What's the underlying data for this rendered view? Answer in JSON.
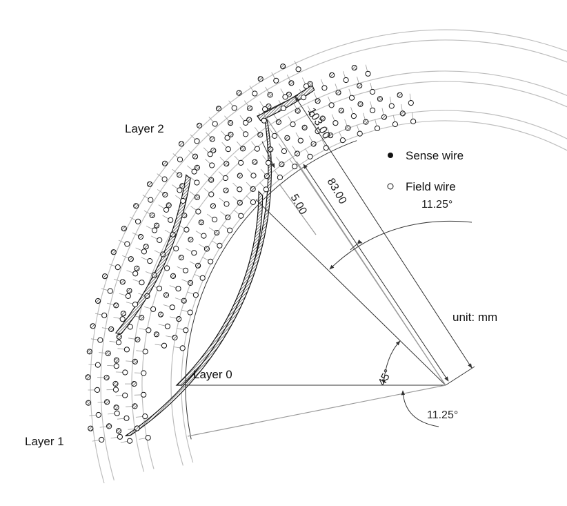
{
  "labels": {
    "layer0": "Layer 0",
    "layer1": "Layer 1",
    "layer2": "Layer 2",
    "unit": "unit: mm"
  },
  "legend": {
    "sense": "Sense wire",
    "field": "Field wire"
  },
  "dimensions": {
    "d103": "103.00",
    "d83": "83.00",
    "d5": "5.00",
    "angle45": "45°",
    "angle_top": "11.25°",
    "angle_bottom": "11.25°"
  }
}
